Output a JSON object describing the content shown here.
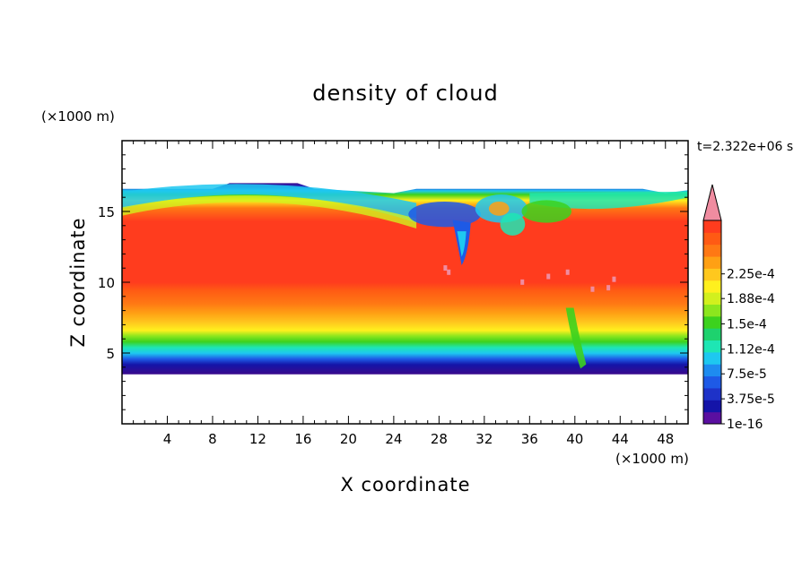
{
  "chart_data": {
    "type": "heatmap",
    "title": "density of cloud",
    "xlabel": "X coordinate",
    "ylabel": "Z coordinate",
    "x_unit": "(×1000 m)",
    "y_unit": "(×1000 m)",
    "time_label": "t=2.322e+06 s",
    "xlim": [
      0,
      50
    ],
    "ylim": [
      0,
      20
    ],
    "x_ticks": [
      4,
      8,
      12,
      16,
      20,
      24,
      28,
      32,
      36,
      40,
      44,
      48
    ],
    "y_ticks": [
      5,
      10,
      15
    ],
    "colorbar": {
      "levels": [
        "1e-16",
        "3.75e-5",
        "7.5e-5",
        "1.12e-4",
        "1.5e-4",
        "1.88e-4",
        "2.25e-4"
      ],
      "level_values": [
        0,
        3.75e-05,
        7.5e-05,
        0.000112,
        0.00015,
        0.000188,
        0.000225
      ],
      "colors": [
        "#5a0fa0",
        "#1414a8",
        "#1e32c8",
        "#1e5ae6",
        "#1e8cf0",
        "#1ec8f0",
        "#1ee6b4",
        "#1ed26e",
        "#3cd21e",
        "#8ce61e",
        "#d2f01e",
        "#fff01e",
        "#ffc81e",
        "#ffa014",
        "#ff7814",
        "#ff5a14",
        "#ff3c1e",
        "#f08ca0"
      ],
      "extend": "max"
    },
    "field_summary": {
      "cloud_base_km": 3.5,
      "cloud_top_km": 16.6,
      "max_density_range_km": [
        9,
        15
      ],
      "features": [
        "overturning eddies near x=28-38 km at z=13-15 km",
        "shear updraft at x=30 km",
        "updraft at x=40 km"
      ]
    }
  }
}
